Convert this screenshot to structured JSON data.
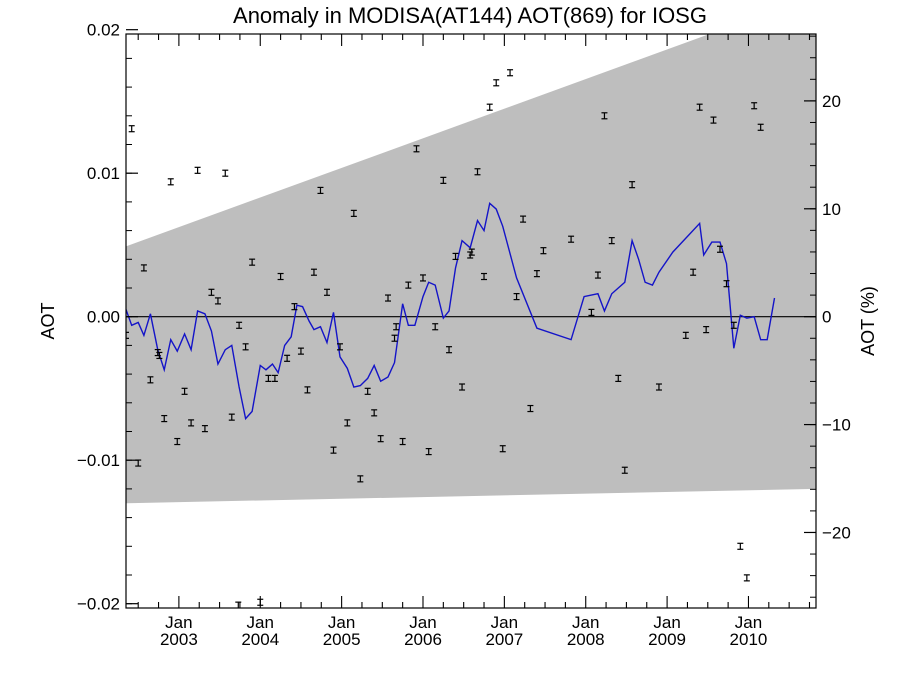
{
  "chart_data": {
    "type": "line",
    "title": "Anomaly in MODISA(AT144) AOT(869) for IOSG",
    "ylabel": "AOT",
    "y2label": "AOT (%)",
    "xlim": [
      2002.35,
      2010.83
    ],
    "ylim": [
      -0.0203,
      0.0197
    ],
    "y2lim": [
      -27.0,
      26.2
    ],
    "grid": false,
    "colors": {
      "line": "#1414c8",
      "band": "#bebebe",
      "axis": "#000000",
      "zero_line": "#000000"
    },
    "x_ticks": [
      {
        "value": 2003.0,
        "month": "Jan",
        "year": "2003"
      },
      {
        "value": 2004.0,
        "month": "Jan",
        "year": "2004"
      },
      {
        "value": 2005.0,
        "month": "Jan",
        "year": "2005"
      },
      {
        "value": 2006.0,
        "month": "Jan",
        "year": "2006"
      },
      {
        "value": 2007.0,
        "month": "Jan",
        "year": "2007"
      },
      {
        "value": 2008.0,
        "month": "Jan",
        "year": "2008"
      },
      {
        "value": 2009.0,
        "month": "Jan",
        "year": "2009"
      },
      {
        "value": 2010.0,
        "month": "Jan",
        "year": "2010"
      }
    ],
    "y_ticks": [
      {
        "value": 0.02,
        "label": "0.02"
      },
      {
        "value": 0.01,
        "label": "0.01"
      },
      {
        "value": 0.0,
        "label": "0.00"
      },
      {
        "value": -0.01,
        "label": "−0.01"
      },
      {
        "value": -0.02,
        "label": "−0.02"
      }
    ],
    "y2_ticks": [
      {
        "value": 20,
        "label": "20"
      },
      {
        "value": 10,
        "label": "10"
      },
      {
        "value": 0,
        "label": "0"
      },
      {
        "value": -10,
        "label": "−10"
      },
      {
        "value": -20,
        "label": "−20"
      }
    ],
    "band": {
      "upper": [
        [
          2002.35,
          0.0049
        ],
        [
          2010.83,
          0.0224
        ]
      ],
      "lower": [
        [
          2002.35,
          -0.013
        ],
        [
          2010.83,
          -0.012
        ]
      ]
    },
    "points": [
      [
        2002.35,
        -0.0013
      ],
      [
        2002.42,
        0.0131
      ],
      [
        2002.5,
        -0.0102
      ],
      [
        2002.57,
        0.0034
      ],
      [
        2002.65,
        -0.0044
      ],
      [
        2002.74,
        -0.0025
      ],
      [
        2002.76,
        -0.0027
      ],
      [
        2002.82,
        -0.0071
      ],
      [
        2002.9,
        0.0094
      ],
      [
        2002.98,
        -0.0087
      ],
      [
        2003.07,
        -0.0052
      ],
      [
        2003.15,
        -0.0074
      ],
      [
        2003.23,
        0.0102
      ],
      [
        2003.32,
        -0.0078
      ],
      [
        2003.4,
        0.0017
      ],
      [
        2003.48,
        0.0011
      ],
      [
        2003.57,
        0.01
      ],
      [
        2003.65,
        -0.007
      ],
      [
        2003.73,
        -0.0201
      ],
      [
        2003.74,
        -0.0006
      ],
      [
        2003.82,
        -0.0021
      ],
      [
        2003.9,
        0.0038
      ],
      [
        2004.0,
        -0.0199
      ],
      [
        2004.1,
        -0.0043
      ],
      [
        2004.18,
        -0.0043
      ],
      [
        2004.25,
        0.0028
      ],
      [
        2004.33,
        -0.0029
      ],
      [
        2004.42,
        0.0007
      ],
      [
        2004.5,
        -0.0024
      ],
      [
        2004.58,
        -0.0051
      ],
      [
        2004.66,
        0.0031
      ],
      [
        2004.74,
        0.0088
      ],
      [
        2004.82,
        0.0017
      ],
      [
        2004.9,
        -0.0093
      ],
      [
        2004.98,
        -0.0021
      ],
      [
        2005.07,
        -0.0074
      ],
      [
        2005.15,
        0.0072
      ],
      [
        2005.23,
        -0.0113
      ],
      [
        2005.32,
        -0.0052
      ],
      [
        2005.4,
        -0.0067
      ],
      [
        2005.48,
        -0.0085
      ],
      [
        2005.57,
        0.0013
      ],
      [
        2005.65,
        -0.0015
      ],
      [
        2005.67,
        -0.0007
      ],
      [
        2005.75,
        -0.0087
      ],
      [
        2005.82,
        0.0022
      ],
      [
        2005.92,
        0.0117
      ],
      [
        2006.0,
        0.0027
      ],
      [
        2006.07,
        -0.0094
      ],
      [
        2006.15,
        -0.0007
      ],
      [
        2006.25,
        0.0095
      ],
      [
        2006.32,
        -0.0023
      ],
      [
        2006.4,
        0.0042
      ],
      [
        2006.48,
        -0.0049
      ],
      [
        2006.58,
        0.0043
      ],
      [
        2006.6,
        0.0045
      ],
      [
        2006.67,
        0.0101
      ],
      [
        2006.75,
        0.0028
      ],
      [
        2006.82,
        0.0146
      ],
      [
        2006.9,
        0.0163
      ],
      [
        2006.98,
        -0.0092
      ],
      [
        2007.07,
        0.017
      ],
      [
        2007.15,
        0.0014
      ],
      [
        2007.23,
        0.0068
      ],
      [
        2007.32,
        -0.0064
      ],
      [
        2007.4,
        0.003
      ],
      [
        2007.48,
        0.0046
      ],
      [
        2007.82,
        0.0054
      ],
      [
        2008.07,
        0.0003
      ],
      [
        2008.15,
        0.0029
      ],
      [
        2008.23,
        0.014
      ],
      [
        2008.32,
        0.0053
      ],
      [
        2008.4,
        -0.0043
      ],
      [
        2008.48,
        -0.0107
      ],
      [
        2008.57,
        0.0092
      ],
      [
        2008.9,
        -0.0049
      ],
      [
        2009.23,
        -0.0013
      ],
      [
        2009.32,
        0.0031
      ],
      [
        2009.4,
        0.0146
      ],
      [
        2009.48,
        -0.0009
      ],
      [
        2009.57,
        0.0137
      ],
      [
        2009.65,
        0.0047
      ],
      [
        2009.73,
        0.0023
      ],
      [
        2009.82,
        -0.0006
      ],
      [
        2009.9,
        -0.016
      ],
      [
        2009.98,
        -0.0182
      ],
      [
        2010.07,
        0.0147
      ],
      [
        2010.15,
        0.0132
      ]
    ],
    "smooth_line": [
      [
        2002.35,
        0.0005
      ],
      [
        2002.42,
        -0.0006
      ],
      [
        2002.5,
        -0.0004
      ],
      [
        2002.57,
        -0.0013
      ],
      [
        2002.65,
        0.0002
      ],
      [
        2002.74,
        -0.0023
      ],
      [
        2002.82,
        -0.0037
      ],
      [
        2002.9,
        -0.0016
      ],
      [
        2002.98,
        -0.0024
      ],
      [
        2003.07,
        -0.0012
      ],
      [
        2003.15,
        -0.0023
      ],
      [
        2003.23,
        0.0004
      ],
      [
        2003.32,
        0.0002
      ],
      [
        2003.4,
        -0.001
      ],
      [
        2003.48,
        -0.0033
      ],
      [
        2003.57,
        -0.0023
      ],
      [
        2003.65,
        -0.002
      ],
      [
        2003.74,
        -0.0049
      ],
      [
        2003.82,
        -0.0071
      ],
      [
        2003.9,
        -0.0066
      ],
      [
        2004.0,
        -0.0034
      ],
      [
        2004.07,
        -0.0037
      ],
      [
        2004.15,
        -0.0033
      ],
      [
        2004.22,
        -0.0039
      ],
      [
        2004.3,
        -0.002
      ],
      [
        2004.38,
        -0.0014
      ],
      [
        2004.45,
        0.0008
      ],
      [
        2004.52,
        0.0007
      ],
      [
        2004.6,
        -0.0003
      ],
      [
        2004.66,
        -0.0009
      ],
      [
        2004.74,
        -0.0007
      ],
      [
        2004.82,
        -0.0018
      ],
      [
        2004.9,
        0.0003
      ],
      [
        2004.98,
        -0.0028
      ],
      [
        2005.07,
        -0.0036
      ],
      [
        2005.15,
        -0.0049
      ],
      [
        2005.23,
        -0.0048
      ],
      [
        2005.32,
        -0.0043
      ],
      [
        2005.4,
        -0.0034
      ],
      [
        2005.48,
        -0.0045
      ],
      [
        2005.57,
        -0.0042
      ],
      [
        2005.65,
        -0.0032
      ],
      [
        2005.75,
        0.0009
      ],
      [
        2005.82,
        -0.0006
      ],
      [
        2005.9,
        -0.0006
      ],
      [
        2006.0,
        0.0014
      ],
      [
        2006.07,
        0.0024
      ],
      [
        2006.15,
        0.0022
      ],
      [
        2006.25,
        -0.0001
      ],
      [
        2006.32,
        0.0004
      ],
      [
        2006.4,
        0.0034
      ],
      [
        2006.48,
        0.0053
      ],
      [
        2006.58,
        0.0048
      ],
      [
        2006.67,
        0.0067
      ],
      [
        2006.75,
        0.006
      ],
      [
        2006.82,
        0.0079
      ],
      [
        2006.9,
        0.0075
      ],
      [
        2006.98,
        0.0063
      ],
      [
        2007.15,
        0.0027
      ],
      [
        2007.4,
        -0.0008
      ],
      [
        2007.82,
        -0.0016
      ],
      [
        2007.98,
        0.0014
      ],
      [
        2008.15,
        0.0016
      ],
      [
        2008.23,
        0.0004
      ],
      [
        2008.32,
        0.0016
      ],
      [
        2008.4,
        0.002
      ],
      [
        2008.48,
        0.0024
      ],
      [
        2008.57,
        0.0053
      ],
      [
        2008.65,
        0.004
      ],
      [
        2008.73,
        0.0024
      ],
      [
        2008.82,
        0.0022
      ],
      [
        2008.9,
        0.0031
      ],
      [
        2009.07,
        0.0045
      ],
      [
        2009.4,
        0.0065
      ],
      [
        2009.45,
        0.0043
      ],
      [
        2009.55,
        0.0052
      ],
      [
        2009.65,
        0.0052
      ],
      [
        2009.73,
        0.0037
      ],
      [
        2009.82,
        -0.0022
      ],
      [
        2009.9,
        0.0001
      ],
      [
        2009.98,
        -0.0001
      ],
      [
        2010.07,
        0.0
      ],
      [
        2010.15,
        -0.0016
      ],
      [
        2010.23,
        -0.0016
      ],
      [
        2010.32,
        0.0013
      ]
    ]
  }
}
